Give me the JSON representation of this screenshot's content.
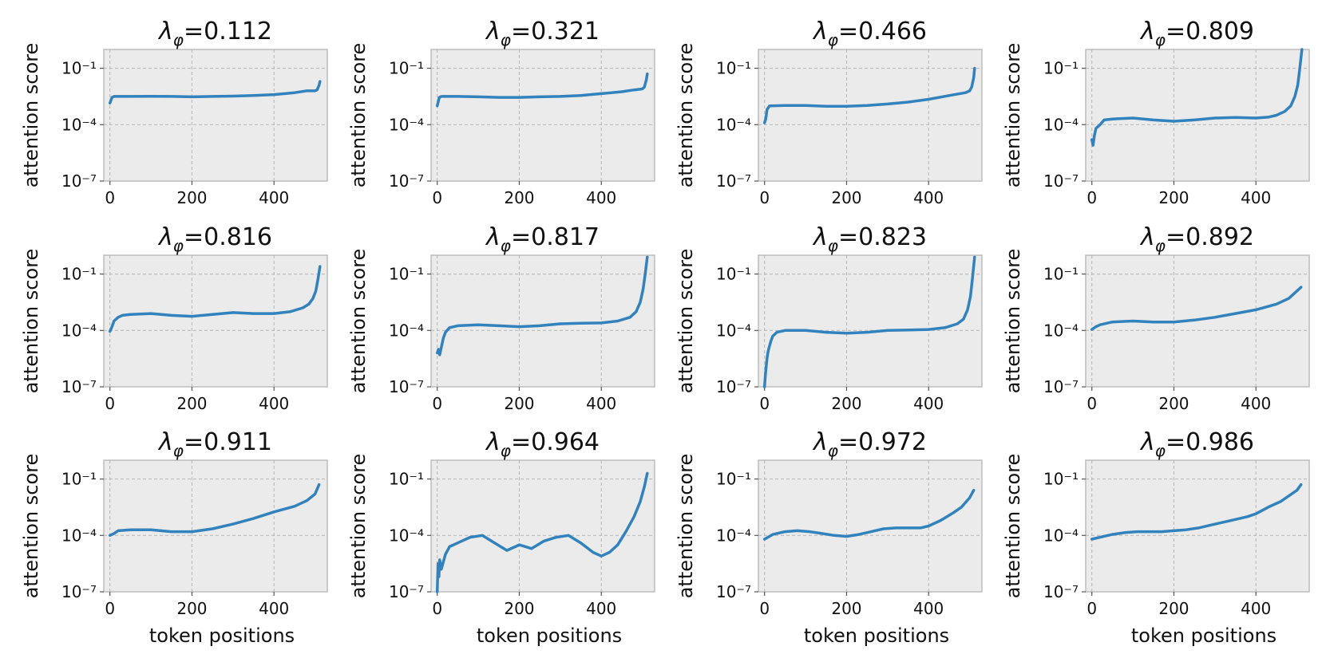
{
  "figure": {
    "title_prefix": "λ",
    "title_sub": "φ",
    "series_color": "#3282bd",
    "panel_bg": "#ebebeb"
  },
  "chart_data": [
    {
      "type": "line",
      "title": "λφ=0.112",
      "lambda": "0.112",
      "ylabel": "attention score",
      "xlabel": "",
      "yscale": "log",
      "xlim": [
        -15,
        530
      ],
      "ylim_exp": [
        -7,
        0
      ],
      "yticks": [
        "10⁻¹",
        "10⁻⁴",
        "10⁻⁷"
      ],
      "xticks": [
        0,
        200,
        400
      ],
      "x": [
        0,
        5,
        10,
        50,
        100,
        150,
        200,
        250,
        300,
        350,
        400,
        450,
        480,
        500,
        505,
        510,
        512
      ],
      "log10_y": [
        -2.85,
        -2.55,
        -2.5,
        -2.5,
        -2.49,
        -2.5,
        -2.52,
        -2.5,
        -2.48,
        -2.45,
        -2.4,
        -2.3,
        -2.2,
        -2.2,
        -2.15,
        -1.9,
        -1.7
      ]
    },
    {
      "type": "line",
      "title": "λφ=0.321",
      "lambda": "0.321",
      "ylabel": "attention score",
      "xlabel": "",
      "yscale": "log",
      "xlim": [
        -15,
        530
      ],
      "ylim_exp": [
        -7,
        0
      ],
      "yticks": [
        "10⁻¹",
        "10⁻⁴",
        "10⁻⁷"
      ],
      "xticks": [
        0,
        200,
        400
      ],
      "x": [
        0,
        5,
        10,
        50,
        100,
        150,
        200,
        250,
        300,
        350,
        400,
        450,
        480,
        500,
        505,
        510,
        512
      ],
      "log10_y": [
        -3.0,
        -2.55,
        -2.5,
        -2.5,
        -2.52,
        -2.55,
        -2.55,
        -2.52,
        -2.5,
        -2.45,
        -2.35,
        -2.25,
        -2.15,
        -2.1,
        -2.0,
        -1.6,
        -1.3
      ]
    },
    {
      "type": "line",
      "title": "λφ=0.466",
      "lambda": "0.466",
      "ylabel": "attention score",
      "xlabel": "",
      "yscale": "log",
      "xlim": [
        -15,
        530
      ],
      "ylim_exp": [
        -7,
        0
      ],
      "yticks": [
        "10⁻¹",
        "10⁻⁴",
        "10⁻⁷"
      ],
      "xticks": [
        0,
        200,
        400
      ],
      "x": [
        0,
        3,
        6,
        12,
        50,
        100,
        150,
        200,
        250,
        300,
        350,
        400,
        450,
        490,
        500,
        505,
        510,
        512
      ],
      "log10_y": [
        -3.9,
        -3.7,
        -3.2,
        -3.0,
        -2.98,
        -2.98,
        -3.02,
        -3.02,
        -2.98,
        -2.9,
        -2.8,
        -2.65,
        -2.45,
        -2.3,
        -2.2,
        -2.0,
        -1.5,
        -1.0
      ]
    },
    {
      "type": "line",
      "title": "λφ=0.809",
      "lambda": "0.809",
      "ylabel": "attention score",
      "xlabel": "",
      "yscale": "log",
      "xlim": [
        -15,
        530
      ],
      "ylim_exp": [
        -7,
        0
      ],
      "yticks": [
        "10⁻¹",
        "10⁻⁴",
        "10⁻⁷"
      ],
      "xticks": [
        0,
        200,
        400
      ],
      "x": [
        0,
        3,
        6,
        10,
        20,
        30,
        50,
        100,
        150,
        200,
        250,
        300,
        350,
        400,
        430,
        450,
        470,
        485,
        495,
        502,
        507,
        512
      ],
      "log10_y": [
        -4.8,
        -5.1,
        -4.6,
        -4.2,
        -4.0,
        -3.75,
        -3.7,
        -3.65,
        -3.75,
        -3.82,
        -3.75,
        -3.65,
        -3.62,
        -3.65,
        -3.6,
        -3.5,
        -3.3,
        -3.0,
        -2.5,
        -1.9,
        -1.0,
        0.0
      ]
    },
    {
      "type": "line",
      "title": "λφ=0.816",
      "lambda": "0.816",
      "ylabel": "attention score",
      "xlabel": "",
      "yscale": "log",
      "xlim": [
        -15,
        530
      ],
      "ylim_exp": [
        -7,
        0
      ],
      "yticks": [
        "10⁻¹",
        "10⁻⁴",
        "10⁻⁷"
      ],
      "xticks": [
        0,
        200,
        400
      ],
      "x": [
        0,
        5,
        10,
        20,
        30,
        50,
        100,
        150,
        200,
        250,
        300,
        350,
        400,
        440,
        470,
        485,
        495,
        502,
        507,
        512
      ],
      "log10_y": [
        -4.05,
        -3.8,
        -3.5,
        -3.3,
        -3.2,
        -3.15,
        -3.1,
        -3.2,
        -3.25,
        -3.15,
        -3.05,
        -3.1,
        -3.1,
        -3.0,
        -2.8,
        -2.6,
        -2.3,
        -1.9,
        -1.3,
        -0.6
      ]
    },
    {
      "type": "line",
      "title": "λφ=0.817",
      "lambda": "0.817",
      "ylabel": "attention score",
      "xlabel": "",
      "yscale": "log",
      "xlim": [
        -15,
        530
      ],
      "ylim_exp": [
        -7,
        0
      ],
      "yticks": [
        "10⁻¹",
        "10⁻⁴",
        "10⁻⁷"
      ],
      "xticks": [
        0,
        200,
        400
      ],
      "x": [
        0,
        3,
        6,
        10,
        15,
        20,
        30,
        50,
        100,
        150,
        200,
        250,
        300,
        350,
        400,
        440,
        470,
        485,
        495,
        502,
        507,
        512
      ],
      "log10_y": [
        -5.2,
        -5.0,
        -5.3,
        -4.9,
        -4.4,
        -4.1,
        -3.85,
        -3.75,
        -3.7,
        -3.75,
        -3.8,
        -3.75,
        -3.65,
        -3.62,
        -3.6,
        -3.5,
        -3.3,
        -3.0,
        -2.5,
        -1.8,
        -1.0,
        -0.1
      ]
    },
    {
      "type": "line",
      "title": "λφ=0.823",
      "lambda": "0.823",
      "ylabel": "attention score",
      "xlabel": "",
      "yscale": "log",
      "xlim": [
        -15,
        530
      ],
      "ylim_exp": [
        -7,
        0
      ],
      "yticks": [
        "10⁻¹",
        "10⁻⁴",
        "10⁻⁷"
      ],
      "xticks": [
        0,
        200,
        400
      ],
      "x": [
        0,
        2,
        4,
        6,
        8,
        10,
        15,
        20,
        30,
        50,
        100,
        150,
        200,
        250,
        300,
        350,
        400,
        440,
        470,
        485,
        495,
        502,
        507,
        512
      ],
      "log10_y": [
        -7.0,
        -6.4,
        -5.9,
        -5.5,
        -5.2,
        -5.0,
        -4.6,
        -4.3,
        -4.1,
        -4.0,
        -4.0,
        -4.1,
        -4.15,
        -4.1,
        -4.0,
        -3.98,
        -3.95,
        -3.85,
        -3.65,
        -3.4,
        -2.9,
        -2.2,
        -1.2,
        -0.1
      ]
    },
    {
      "type": "line",
      "title": "λφ=0.892",
      "lambda": "0.892",
      "ylabel": "attention score",
      "xlabel": "",
      "yscale": "log",
      "xlim": [
        -15,
        530
      ],
      "ylim_exp": [
        -7,
        0
      ],
      "yticks": [
        "10⁻¹",
        "10⁻⁴",
        "10⁻⁷"
      ],
      "xticks": [
        0,
        200,
        400
      ],
      "x": [
        0,
        10,
        20,
        50,
        100,
        150,
        200,
        250,
        300,
        350,
        400,
        450,
        480,
        500,
        510
      ],
      "log10_y": [
        -3.95,
        -3.8,
        -3.7,
        -3.55,
        -3.5,
        -3.55,
        -3.55,
        -3.45,
        -3.3,
        -3.1,
        -2.9,
        -2.6,
        -2.3,
        -1.9,
        -1.7
      ]
    },
    {
      "type": "line",
      "title": "λφ=0.911",
      "lambda": "0.911",
      "ylabel": "attention score",
      "xlabel": "",
      "yscale": "log",
      "xlim": [
        -15,
        530
      ],
      "ylim_exp": [
        -7,
        0
      ],
      "yticks": [
        "10⁻¹",
        "10⁻⁴",
        "10⁻⁷"
      ],
      "xticks": [
        0,
        200,
        400
      ],
      "x": [
        0,
        10,
        20,
        50,
        100,
        150,
        200,
        250,
        300,
        350,
        400,
        450,
        480,
        500,
        510
      ],
      "log10_y": [
        -4.0,
        -3.9,
        -3.75,
        -3.7,
        -3.7,
        -3.8,
        -3.8,
        -3.65,
        -3.4,
        -3.1,
        -2.75,
        -2.45,
        -2.15,
        -1.8,
        -1.3
      ]
    },
    {
      "type": "line",
      "title": "λφ=0.964",
      "lambda": "0.964",
      "ylabel": "attention score",
      "xlabel": "",
      "yscale": "log",
      "xlim": [
        -15,
        530
      ],
      "ylim_exp": [
        -7,
        0
      ],
      "yticks": [
        "10⁻¹",
        "10⁻⁴",
        "10⁻⁷"
      ],
      "xticks": [
        0,
        200,
        400
      ],
      "x": [
        0,
        2,
        4,
        6,
        10,
        20,
        30,
        50,
        80,
        110,
        140,
        170,
        200,
        230,
        260,
        290,
        320,
        350,
        380,
        400,
        420,
        440,
        460,
        480,
        495,
        505,
        512
      ],
      "log10_y": [
        -7.0,
        -5.5,
        -6.2,
        -5.3,
        -5.8,
        -5.0,
        -4.6,
        -4.4,
        -4.1,
        -4.0,
        -4.4,
        -4.8,
        -4.5,
        -4.7,
        -4.3,
        -4.1,
        -4.0,
        -4.4,
        -4.9,
        -5.1,
        -4.9,
        -4.5,
        -3.8,
        -3.0,
        -2.2,
        -1.4,
        -0.7
      ]
    },
    {
      "type": "line",
      "title": "λφ=0.972",
      "lambda": "0.972",
      "ylabel": "attention score",
      "xlabel": "",
      "yscale": "log",
      "xlim": [
        -15,
        530
      ],
      "ylim_exp": [
        -7,
        0
      ],
      "yticks": [
        "10⁻¹",
        "10⁻⁴",
        "10⁻⁷"
      ],
      "xticks": [
        0,
        200,
        400
      ],
      "x": [
        0,
        20,
        50,
        80,
        110,
        140,
        170,
        200,
        230,
        260,
        290,
        320,
        350,
        380,
        400,
        430,
        460,
        480,
        500,
        510
      ],
      "log10_y": [
        -4.2,
        -3.95,
        -3.8,
        -3.75,
        -3.8,
        -3.9,
        -4.0,
        -4.05,
        -3.95,
        -3.8,
        -3.65,
        -3.6,
        -3.6,
        -3.6,
        -3.5,
        -3.2,
        -2.8,
        -2.5,
        -2.0,
        -1.6
      ]
    },
    {
      "type": "line",
      "title": "λφ=0.986",
      "lambda": "0.986",
      "ylabel": "attention score",
      "xlabel": "",
      "yscale": "log",
      "xlim": [
        -15,
        530
      ],
      "ylim_exp": [
        -7,
        0
      ],
      "yticks": [
        "10⁻¹",
        "10⁻⁴",
        "10⁻⁷"
      ],
      "xticks": [
        0,
        200,
        400
      ],
      "x": [
        0,
        20,
        50,
        80,
        110,
        140,
        170,
        200,
        230,
        260,
        290,
        320,
        350,
        380,
        400,
        430,
        460,
        480,
        500,
        510
      ],
      "log10_y": [
        -4.2,
        -4.1,
        -3.95,
        -3.85,
        -3.8,
        -3.8,
        -3.8,
        -3.75,
        -3.7,
        -3.6,
        -3.45,
        -3.3,
        -3.15,
        -3.0,
        -2.85,
        -2.5,
        -2.2,
        -1.9,
        -1.6,
        -1.3
      ]
    }
  ],
  "bottom_xlabel": "token positions"
}
